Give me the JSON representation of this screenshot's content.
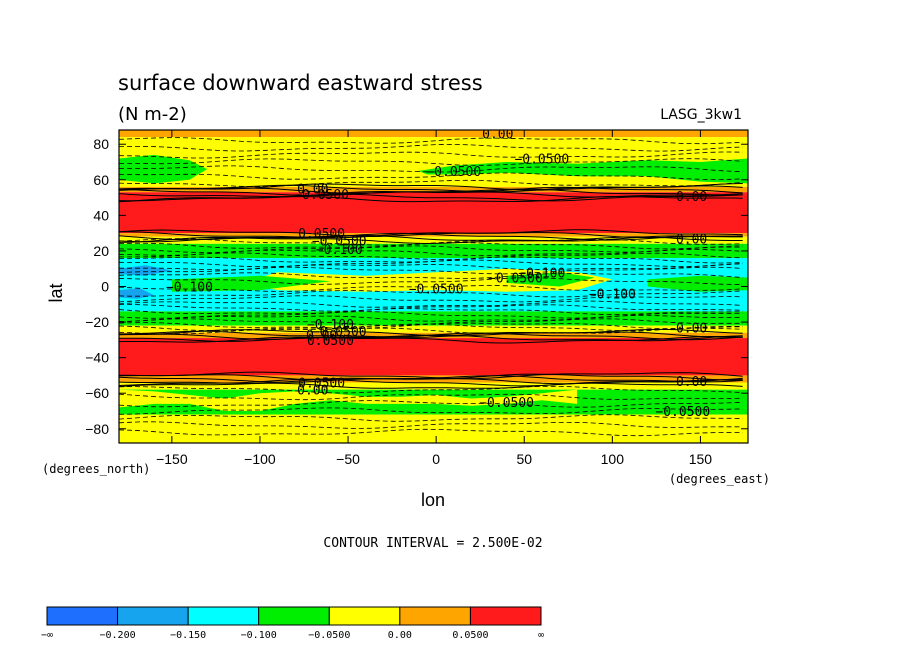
{
  "chart_data": {
    "type": "heatmap",
    "title": "surface downward eastward stress",
    "subtitle": "(N m-2)",
    "model_label": "LASG_3kw1",
    "xlabel": "lon",
    "ylabel": "lat",
    "x_units_label": "(degrees_east)",
    "y_units_label": "(degrees_north)",
    "contour_interval_text": "CONTOUR INTERVAL = 2.500E-02",
    "xlim": [
      -180,
      177
    ],
    "ylim": [
      -88,
      88
    ],
    "x_ticks": [
      -150,
      -100,
      -50,
      0,
      50,
      100,
      150
    ],
    "x_tick_labels": [
      "−150",
      "−100",
      "−50",
      "0",
      "50",
      "100",
      "150"
    ],
    "y_ticks": [
      80,
      60,
      40,
      20,
      0,
      -20,
      -40,
      -60,
      -80
    ],
    "y_tick_labels": [
      "80",
      "60",
      "40",
      "20",
      "0",
      "−20",
      "−40",
      "−60",
      "−80"
    ],
    "grid": false,
    "legend_position": "bottom",
    "colorbar": {
      "colors": [
        "#1f6fff",
        "#16a4ee",
        "#00ffff",
        "#00ee00",
        "#ffff00",
        "#ffa500",
        "#ff1b1b"
      ],
      "labels": [
        "−∞",
        "−0.200",
        "−0.150",
        "−0.100",
        "−0.0500",
        "0.00",
        "0.0500",
        "∞"
      ]
    },
    "bands": [
      {
        "lat": [
          84,
          88
        ],
        "color": "#ffa500"
      },
      {
        "lat": [
          56,
          84
        ],
        "color": "#ffff00"
      },
      {
        "lat": [
          53,
          56
        ],
        "color": "#ffa500"
      },
      {
        "lat": [
          52,
          53
        ],
        "color": "#ff1b1b"
      },
      {
        "lat": [
          30,
          52
        ],
        "color": "#ff1b1b"
      },
      {
        "lat": [
          28,
          30
        ],
        "color": "#ffa500"
      },
      {
        "lat": [
          24,
          28
        ],
        "color": "#ffff00"
      },
      {
        "lat": [
          16,
          24
        ],
        "color": "#00ee00"
      },
      {
        "lat": [
          -14,
          16
        ],
        "color": "#00ffff"
      },
      {
        "lat": [
          -22,
          -14
        ],
        "color": "#00ee00"
      },
      {
        "lat": [
          -26,
          -22
        ],
        "color": "#ffff00"
      },
      {
        "lat": [
          -29,
          -26
        ],
        "color": "#ffa500"
      },
      {
        "lat": [
          -50,
          -29
        ],
        "color": "#ff1b1b"
      },
      {
        "lat": [
          -54,
          -50
        ],
        "color": "#ffa500"
      },
      {
        "lat": [
          -58,
          -54
        ],
        "color": "#ffff00"
      },
      {
        "lat": [
          -72,
          -58
        ],
        "color": "#00ee00"
      },
      {
        "lat": [
          -88,
          -72
        ],
        "color": "#ffff00"
      }
    ],
    "patches": [
      {
        "color": "#00ee00",
        "points": [
          [
            -180,
            72
          ],
          [
            -160,
            74
          ],
          [
            -140,
            71
          ],
          [
            -130,
            66
          ],
          [
            -140,
            60
          ],
          [
            -160,
            58
          ],
          [
            -180,
            60
          ]
        ]
      },
      {
        "color": "#00ee00",
        "points": [
          [
            -10,
            65
          ],
          [
            10,
            68
          ],
          [
            40,
            70
          ],
          [
            80,
            69
          ],
          [
            120,
            71
          ],
          [
            150,
            70
          ],
          [
            177,
            72
          ],
          [
            177,
            58
          ],
          [
            150,
            59
          ],
          [
            120,
            62
          ],
          [
            80,
            62
          ],
          [
            40,
            64
          ],
          [
            10,
            63
          ],
          [
            -5,
            63
          ]
        ]
      },
      {
        "color": "#ffff00",
        "points": [
          [
            -90,
            8
          ],
          [
            -40,
            6
          ],
          [
            0,
            8
          ],
          [
            40,
            10
          ],
          [
            80,
            8
          ],
          [
            100,
            4
          ],
          [
            80,
            -2
          ],
          [
            40,
            -3
          ],
          [
            0,
            -2
          ],
          [
            -40,
            -3
          ],
          [
            -90,
            -2
          ],
          [
            -110,
            2
          ]
        ]
      },
      {
        "color": "#00ee00",
        "points": [
          [
            -150,
            4
          ],
          [
            -100,
            6
          ],
          [
            -60,
            3
          ],
          [
            -100,
            -2
          ],
          [
            -150,
            -3
          ]
        ]
      },
      {
        "color": "#00ee00",
        "points": [
          [
            40,
            6
          ],
          [
            70,
            8
          ],
          [
            90,
            5
          ],
          [
            70,
            0
          ],
          [
            40,
            2
          ]
        ]
      },
      {
        "color": "#00ee00",
        "points": [
          [
            120,
            4
          ],
          [
            150,
            6
          ],
          [
            177,
            5
          ],
          [
            177,
            -2
          ],
          [
            150,
            -3
          ],
          [
            120,
            0
          ]
        ]
      },
      {
        "color": "#16a4ee",
        "points": [
          [
            -180,
            10
          ],
          [
            -165,
            12
          ],
          [
            -150,
            9
          ],
          [
            -165,
            6
          ],
          [
            -180,
            7
          ]
        ]
      },
      {
        "color": "#16a4ee",
        "points": [
          [
            -180,
            -2
          ],
          [
            -168,
            -1
          ],
          [
            -160,
            -5
          ],
          [
            -170,
            -7
          ],
          [
            -180,
            -6
          ]
        ]
      },
      {
        "color": "#ffff00",
        "points": [
          [
            -180,
            -58
          ],
          [
            -160,
            -59
          ],
          [
            -140,
            -61
          ],
          [
            -120,
            -63
          ],
          [
            -100,
            -60
          ],
          [
            -80,
            -59
          ],
          [
            -60,
            -60
          ],
          [
            -40,
            -62
          ],
          [
            -20,
            -62
          ],
          [
            0,
            -61
          ],
          [
            20,
            -63
          ],
          [
            40,
            -62
          ],
          [
            60,
            -60
          ],
          [
            80,
            -58
          ],
          [
            80,
            -66
          ],
          [
            60,
            -64
          ],
          [
            40,
            -66
          ],
          [
            20,
            -67
          ],
          [
            0,
            -66
          ],
          [
            -20,
            -66
          ],
          [
            -40,
            -66
          ],
          [
            -60,
            -64
          ],
          [
            -80,
            -66
          ],
          [
            -100,
            -70
          ],
          [
            -120,
            -70
          ],
          [
            -140,
            -66
          ],
          [
            -160,
            -66
          ],
          [
            -180,
            -68
          ]
        ]
      }
    ],
    "contour_labels": [
      {
        "text": "0.00",
        "lon": 35,
        "lat": 86
      },
      {
        "text": "−0.0500",
        "lon": 60,
        "lat": 72
      },
      {
        "text": "−0.0500",
        "lon": 10,
        "lat": 65
      },
      {
        "text": "0.00",
        "lon": -70,
        "lat": 55
      },
      {
        "text": "−0.0500",
        "lon": -65,
        "lat": 52
      },
      {
        "text": "0.00",
        "lon": 145,
        "lat": 51
      },
      {
        "text": "0.0500",
        "lon": -65,
        "lat": 30
      },
      {
        "text": "−0.0500",
        "lon": -55,
        "lat": 26
      },
      {
        "text": "−0.100",
        "lon": -55,
        "lat": 21
      },
      {
        "text": "0.00",
        "lon": 145,
        "lat": 27
      },
      {
        "text": "−0.100",
        "lon": 60,
        "lat": 8
      },
      {
        "text": "−0.0500",
        "lon": 45,
        "lat": 5
      },
      {
        "text": "−0.100",
        "lon": -140,
        "lat": 0
      },
      {
        "text": "−0.0500",
        "lon": 0,
        "lat": -1
      },
      {
        "text": "−0.100",
        "lon": 100,
        "lat": -4
      },
      {
        "text": "−0.100",
        "lon": -60,
        "lat": -21
      },
      {
        "text": "−0.0500",
        "lon": -55,
        "lat": -25
      },
      {
        "text": "0.00",
        "lon": -65,
        "lat": -27
      },
      {
        "text": "0.0500",
        "lon": -60,
        "lat": -30
      },
      {
        "text": "0.00",
        "lon": 145,
        "lat": -23
      },
      {
        "text": "0.0500",
        "lon": -65,
        "lat": -54
      },
      {
        "text": "0.00",
        "lon": -70,
        "lat": -58
      },
      {
        "text": "0.00",
        "lon": 145,
        "lat": -53
      },
      {
        "text": "−0.0500",
        "lon": 40,
        "lat": -65
      },
      {
        "text": "−0.0500",
        "lon": 140,
        "lat": -70
      }
    ]
  }
}
